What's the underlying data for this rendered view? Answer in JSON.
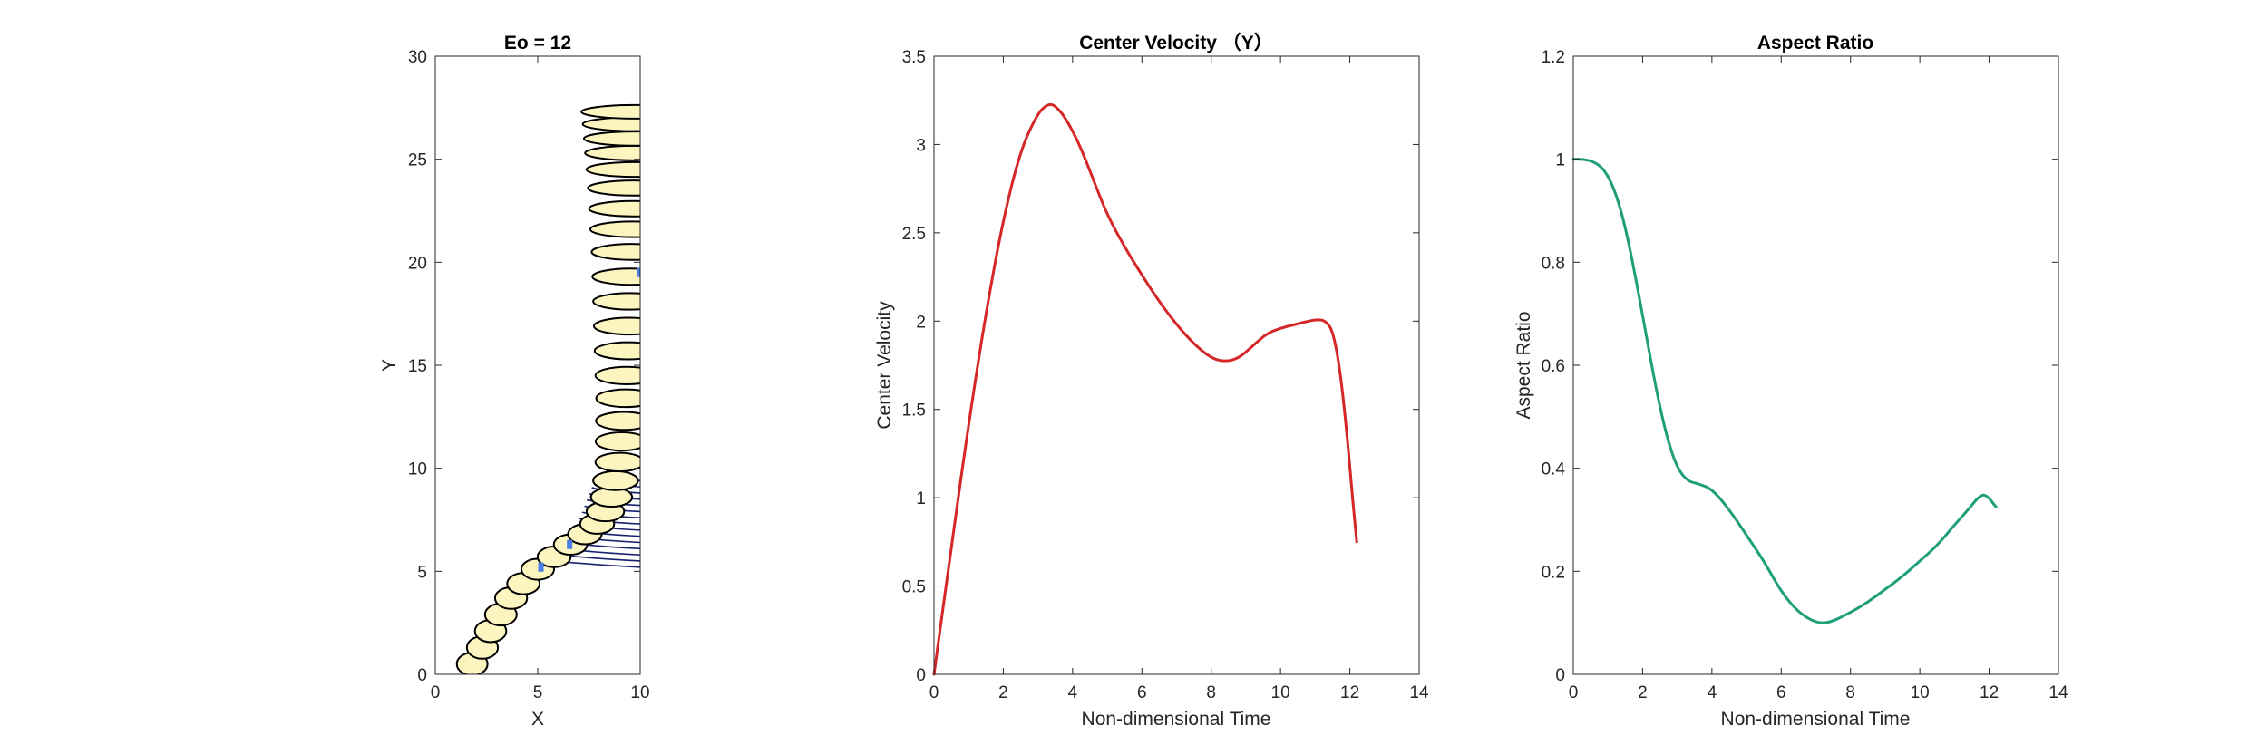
{
  "chart_data": [
    {
      "type": "line",
      "title": "Eo = 12",
      "xlabel": "X",
      "ylabel": "Y",
      "xlim": [
        0,
        10
      ],
      "ylim": [
        0,
        30
      ],
      "xticks": [
        0,
        5,
        10
      ],
      "yticks": [
        0,
        5,
        10,
        15,
        20,
        25,
        30
      ],
      "grid": false,
      "description_kind": "bubble interface contours over time (half-domain, symmetric about x = 10)",
      "colors": {
        "outline": "#000000",
        "fill": "#fdf5c0",
        "inner": "#1a2370",
        "marker": "#4a7ee8"
      },
      "bubble_centers": [
        {
          "x": 1.8,
          "y": 0.5
        },
        {
          "x": 2.3,
          "y": 1.3
        },
        {
          "x": 2.7,
          "y": 2.1
        },
        {
          "x": 3.2,
          "y": 2.9
        },
        {
          "x": 3.7,
          "y": 3.7
        },
        {
          "x": 4.3,
          "y": 4.4
        },
        {
          "x": 5.0,
          "y": 5.1
        },
        {
          "x": 5.8,
          "y": 5.7
        },
        {
          "x": 6.6,
          "y": 6.3
        },
        {
          "x": 7.3,
          "y": 6.8
        },
        {
          "x": 7.9,
          "y": 7.3
        },
        {
          "x": 8.3,
          "y": 7.9
        },
        {
          "x": 8.6,
          "y": 8.6
        },
        {
          "x": 8.8,
          "y": 9.4
        },
        {
          "x": 9.0,
          "y": 10.3
        },
        {
          "x": 9.1,
          "y": 11.3
        },
        {
          "x": 9.2,
          "y": 12.3
        },
        {
          "x": 9.3,
          "y": 13.4
        },
        {
          "x": 9.35,
          "y": 14.5
        },
        {
          "x": 9.4,
          "y": 15.7
        },
        {
          "x": 9.45,
          "y": 16.9
        },
        {
          "x": 9.5,
          "y": 18.1
        },
        {
          "x": 9.55,
          "y": 19.3
        },
        {
          "x": 9.6,
          "y": 20.5
        },
        {
          "x": 9.62,
          "y": 21.6
        },
        {
          "x": 9.65,
          "y": 22.6
        },
        {
          "x": 9.68,
          "y": 23.6
        },
        {
          "x": 9.7,
          "y": 24.5
        },
        {
          "x": 9.72,
          "y": 25.3
        },
        {
          "x": 9.75,
          "y": 26.0
        },
        {
          "x": 9.78,
          "y": 26.7
        },
        {
          "x": 9.8,
          "y": 27.3
        }
      ],
      "wake_lines_y": [
        5.2,
        5.5,
        5.8,
        6.1,
        6.4,
        6.7,
        7.0,
        7.3,
        7.6,
        7.9,
        8.2,
        8.5,
        8.8,
        9.1,
        9.4
      ]
    },
    {
      "type": "line",
      "title": "Center Velocity （Y）",
      "xlabel": "Non-dimensional Time",
      "ylabel": "Center Velocity",
      "xlim": [
        0,
        14
      ],
      "ylim": [
        0,
        3.5
      ],
      "xticks": [
        0,
        2,
        4,
        6,
        8,
        10,
        12,
        14
      ],
      "yticks": [
        0,
        0.5,
        1,
        1.5,
        2,
        2.5,
        3,
        3.5
      ],
      "grid": false,
      "series": [
        {
          "color": "#d62728",
          "x": [
            0,
            0.5,
            1,
            1.5,
            2,
            2.5,
            3,
            3.3,
            3.5,
            3.8,
            4.2,
            4.6,
            5,
            5.5,
            6,
            6.5,
            7,
            7.5,
            8,
            8.4,
            8.8,
            9.2,
            9.6,
            10,
            10.4,
            10.8,
            11.1,
            11.3,
            11.5,
            11.7,
            11.9,
            12.1,
            12.2
          ],
          "y": [
            0,
            0.72,
            1.42,
            2.05,
            2.58,
            2.97,
            3.18,
            3.23,
            3.22,
            3.15,
            3.0,
            2.8,
            2.6,
            2.42,
            2.26,
            2.11,
            1.98,
            1.87,
            1.79,
            1.77,
            1.79,
            1.86,
            1.93,
            1.96,
            1.98,
            2.0,
            2.01,
            2.0,
            1.95,
            1.75,
            1.4,
            0.95,
            0.75
          ]
        }
      ]
    },
    {
      "type": "line",
      "title": "Aspect Ratio",
      "xlabel": "Non-dimensional Time",
      "ylabel": "Aspect Ratio",
      "xlim": [
        0,
        14
      ],
      "ylim": [
        0,
        1.2
      ],
      "xticks": [
        0,
        2,
        4,
        6,
        8,
        10,
        12,
        14
      ],
      "yticks": [
        0,
        0.2,
        0.4,
        0.6,
        0.8,
        1,
        1.2
      ],
      "grid": false,
      "series": [
        {
          "color": "#1f9e7a",
          "x": [
            0,
            0.3,
            0.6,
            0.9,
            1.2,
            1.5,
            1.8,
            2.1,
            2.4,
            2.7,
            3,
            3.3,
            3.6,
            4,
            4.5,
            5,
            5.5,
            6,
            6.5,
            7,
            7.4,
            8,
            8.5,
            9,
            9.5,
            10,
            10.5,
            11,
            11.4,
            11.7,
            11.9,
            12.2
          ],
          "y": [
            1.0,
            1.0,
            0.995,
            0.98,
            0.94,
            0.87,
            0.77,
            0.66,
            0.55,
            0.46,
            0.4,
            0.375,
            0.37,
            0.36,
            0.32,
            0.27,
            0.22,
            0.16,
            0.12,
            0.1,
            0.1,
            0.12,
            0.14,
            0.165,
            0.19,
            0.22,
            0.25,
            0.29,
            0.32,
            0.345,
            0.35,
            0.325
          ]
        }
      ]
    }
  ]
}
